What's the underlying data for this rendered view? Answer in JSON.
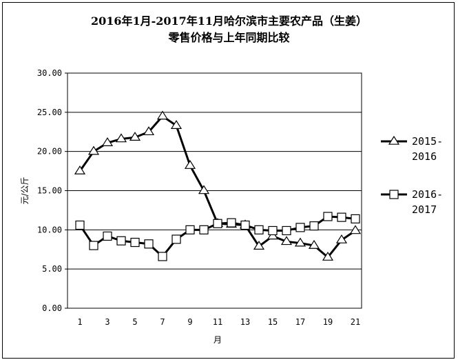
{
  "chart_data": {
    "type": "line",
    "title": "2016年1月-2017年11月哈尔滨市主要农产品（生姜）",
    "subtitle": "零售价格与上年同期比较",
    "xlabel": "月",
    "ylabel": "元/公斤",
    "x": [
      1,
      2,
      3,
      4,
      5,
      6,
      7,
      8,
      9,
      10,
      11,
      12,
      13,
      14,
      15,
      16,
      17,
      18,
      19,
      20,
      21
    ],
    "x_ticks": [
      "1",
      "3",
      "5",
      "7",
      "9",
      "11",
      "13",
      "15",
      "17",
      "19",
      "21"
    ],
    "y_ticks": [
      "0.00",
      "5.00",
      "10.00",
      "15.00",
      "20.00",
      "25.00",
      "30.00"
    ],
    "ylim": [
      0,
      30
    ],
    "xlim": [
      1,
      21
    ],
    "grid": "horizontal",
    "legend_position": "right",
    "series": [
      {
        "name": "2015-2016",
        "name_lines": [
          "2015-",
          "2016"
        ],
        "marker": "triangle",
        "values": [
          17.5,
          20.0,
          21.1,
          21.6,
          21.8,
          22.5,
          24.5,
          23.3,
          18.2,
          15.0,
          10.8,
          10.7,
          10.6,
          7.9,
          9.2,
          8.5,
          8.3,
          8.0,
          6.5,
          8.7,
          9.9
        ]
      },
      {
        "name": "2016-2017",
        "name_lines": [
          "2016-",
          "2017"
        ],
        "marker": "square",
        "values": [
          10.6,
          8.0,
          9.2,
          8.6,
          8.4,
          8.2,
          6.6,
          8.8,
          10.0,
          10.0,
          10.8,
          10.9,
          10.6,
          10.0,
          9.9,
          9.9,
          10.3,
          10.5,
          11.7,
          11.6,
          11.4
        ]
      }
    ]
  }
}
